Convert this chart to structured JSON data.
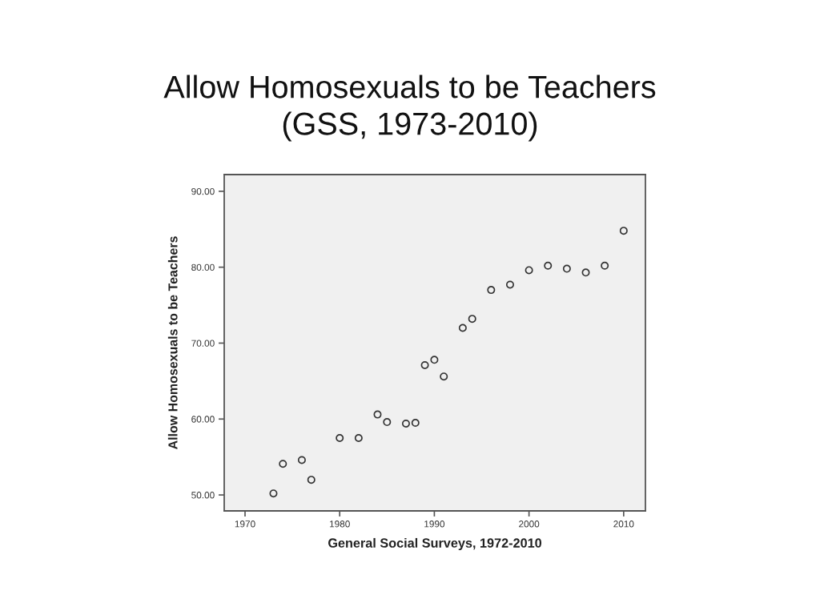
{
  "chart_data": {
    "type": "scatter",
    "title": "Allow Homosexuals to be Teachers",
    "subtitle": "(GSS, 1973-2010)",
    "xlabel": "General Social Surveys, 1972-2010",
    "ylabel": "Allow Homosexuals to be Teachers",
    "x": [
      1973,
      1974,
      1976,
      1977,
      1980,
      1982,
      1984,
      1985,
      1987,
      1988,
      1989,
      1990,
      1991,
      1993,
      1994,
      1996,
      1998,
      2000,
      2002,
      2004,
      2006,
      2008,
      2010
    ],
    "series": [
      {
        "color": "#333333",
        "values": [
          50.2,
          54.1,
          54.6,
          52.0,
          57.5,
          57.5,
          60.6,
          59.6,
          59.4,
          59.5,
          67.1,
          67.8,
          65.6,
          72.0,
          73.2,
          77.0,
          77.7,
          79.6,
          80.2,
          79.8,
          79.3,
          80.2,
          84.8
        ]
      }
    ],
    "xlim": [
      1967.8,
      2012.3
    ],
    "xticks": [
      1970,
      1980,
      1990,
      2000,
      2010
    ],
    "ylim": [
      47.9,
      92.2
    ],
    "yticks": [
      {
        "value": 50,
        "label": "50.00"
      },
      {
        "value": 60,
        "label": "60.00"
      },
      {
        "value": 70,
        "label": "70.00"
      },
      {
        "value": 80,
        "label": "80.00"
      },
      {
        "value": 90,
        "label": "90.00"
      }
    ],
    "marker": "circle",
    "grid": false
  }
}
